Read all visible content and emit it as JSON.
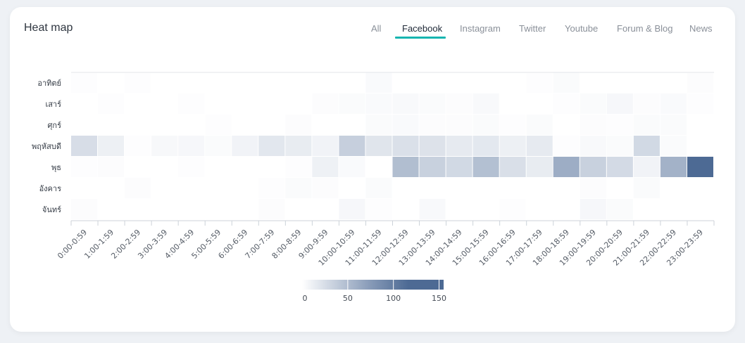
{
  "header": {
    "title": "Heat map"
  },
  "tabs": [
    {
      "label": "All",
      "active": false
    },
    {
      "label": "Facebook",
      "active": true
    },
    {
      "label": "Instagram",
      "active": false
    },
    {
      "label": "Twitter",
      "active": false
    },
    {
      "label": "Youtube",
      "active": false
    },
    {
      "label": "Forum & Blog",
      "active": false
    },
    {
      "label": "News",
      "active": false
    }
  ],
  "colors": {
    "accent": "#17b5b0",
    "scale_low": "#ffffff",
    "scale_high": "#08306b"
  },
  "chart_data": {
    "type": "heatmap",
    "title": "",
    "xlabel": "",
    "ylabel": "",
    "x": [
      "0:00-0:59",
      "1:00-1:59",
      "2:00-2:59",
      "3:00-3:59",
      "4:00-4:59",
      "5:00-5:59",
      "6:00-6:59",
      "7:00-7:59",
      "8:00-8:59",
      "9:00-9:59",
      "10:00-10:59",
      "11:00-11:59",
      "12:00-12:59",
      "13:00-13:59",
      "14:00-14:59",
      "15:00-15:59",
      "16:00-16:59",
      "17:00-17:59",
      "18:00-18:59",
      "19:00-19:59",
      "20:00-20:59",
      "21:00-21:59",
      "22:00-22:59",
      "23:00-23:59"
    ],
    "y": [
      "อาทิตย์",
      "เสาร์",
      "ศุกร์",
      "พฤหัสบดี",
      "พุธ",
      "อังคาร",
      "จันทร์"
    ],
    "values": [
      [
        2,
        0,
        2,
        0,
        0,
        0,
        0,
        0,
        0,
        0,
        0,
        5,
        0,
        0,
        0,
        0,
        0,
        2,
        4,
        0,
        0,
        0,
        0,
        3
      ],
      [
        0,
        2,
        0,
        0,
        2,
        0,
        0,
        0,
        0,
        3,
        4,
        5,
        6,
        4,
        3,
        6,
        0,
        0,
        2,
        4,
        8,
        3,
        5,
        2
      ],
      [
        0,
        0,
        0,
        0,
        0,
        2,
        0,
        0,
        3,
        0,
        0,
        4,
        5,
        3,
        3,
        4,
        2,
        4,
        0,
        3,
        2,
        4,
        4,
        0
      ],
      [
        35,
        16,
        2,
        7,
        8,
        4,
        12,
        25,
        20,
        12,
        50,
        27,
        32,
        30,
        22,
        24,
        16,
        22,
        2,
        6,
        4,
        40,
        4,
        0
      ],
      [
        2,
        3,
        0,
        0,
        2,
        0,
        0,
        0,
        2,
        15,
        5,
        0,
        68,
        48,
        40,
        66,
        33,
        20,
        85,
        48,
        38,
        12,
        80,
        155
      ],
      [
        0,
        0,
        3,
        0,
        0,
        0,
        0,
        2,
        4,
        3,
        0,
        4,
        0,
        0,
        0,
        0,
        0,
        0,
        0,
        3,
        0,
        4,
        0,
        0
      ],
      [
        3,
        0,
        0,
        0,
        0,
        0,
        0,
        3,
        0,
        0,
        8,
        2,
        0,
        6,
        0,
        0,
        2,
        0,
        0,
        8,
        4,
        0,
        0,
        0
      ]
    ],
    "colorbar": {
      "min": 0,
      "max": 155,
      "ticks": [
        0,
        50,
        100,
        150
      ]
    }
  }
}
